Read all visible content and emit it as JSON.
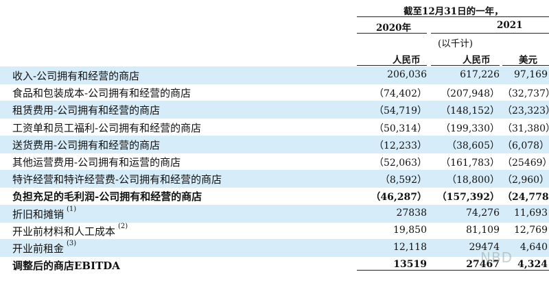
{
  "header": {
    "period": "截至12月31日的一年，",
    "year_2020": "2020年",
    "year_2021": "2021",
    "thousands_note": "(以千计)",
    "currency_rmb_2020": "人民币",
    "currency_rmb_2021": "人民币",
    "currency_usd": "美元"
  },
  "rows": [
    {
      "label": "收入-公司拥有和经营的商店",
      "note": "",
      "v2020": "206,036",
      "v2021_rmb": "617,226",
      "v2021_usd": "97,169",
      "bold": false,
      "shaded": true
    },
    {
      "label": "食品和包装成本-公司拥有和经营的商店",
      "note": "",
      "v2020": "（74,402）",
      "v2021_rmb": "（207,948）",
      "v2021_usd": "（32,737）",
      "bold": false,
      "shaded": false
    },
    {
      "label": "租赁费用-公司拥有和经营的商店",
      "note": "",
      "v2020": "（54,719）",
      "v2021_rmb": "（148,152）",
      "v2021_usd": "（23,323）",
      "bold": false,
      "shaded": true
    },
    {
      "label": "工资单和员工福利-公司拥有和经营的商店",
      "note": "",
      "v2020": "（50,314）",
      "v2021_rmb": "（199,330）",
      "v2021_usd": "（31,380）",
      "bold": false,
      "shaded": false
    },
    {
      "label": "送货费用-公司拥有和经营的商店",
      "note": "",
      "v2020": "（12,233）",
      "v2021_rmb": "（38,605）",
      "v2021_usd": "（6,078）",
      "bold": false,
      "shaded": true
    },
    {
      "label": "其他运营费用-公司拥有和运营的商店",
      "note": "",
      "v2020": "（52,063）",
      "v2021_rmb": "（161,783）",
      "v2021_usd": "（25469）",
      "bold": false,
      "shaded": false
    },
    {
      "label": "特许经营和特许经营费-公司拥有和经营的商店",
      "note": "",
      "v2020": "（8,592）",
      "v2021_rmb": "（18,800）",
      "v2021_usd": "（2,960）",
      "bold": false,
      "shaded": true
    },
    {
      "label": "负担充足的毛利润-公司拥有和经营的商店",
      "note": "",
      "v2020": "（46,287）",
      "v2021_rmb": "（157,392）",
      "v2021_usd": "（24,778）",
      "bold": true,
      "shaded": false
    },
    {
      "label": "折旧和摊销",
      "note": "(1)",
      "v2020": "27838",
      "v2021_rmb": "74,276",
      "v2021_usd": "11,693",
      "bold": false,
      "shaded": true
    },
    {
      "label": "开业前材料和人工成本",
      "note": "(2)",
      "v2020": "19,850",
      "v2021_rmb": "81,109",
      "v2021_usd": "12,769",
      "bold": false,
      "shaded": false
    },
    {
      "label": "开业前租金",
      "note": "(3)",
      "v2020": "12,118",
      "v2021_rmb": "29474",
      "v2021_usd": "4,640",
      "bold": false,
      "shaded": true
    },
    {
      "label": "调整后的商店EBITDA",
      "note": "",
      "v2020": "13519",
      "v2021_rmb": "27467",
      "v2021_usd": "4,324",
      "bold": true,
      "shaded": false
    }
  ],
  "watermark": "NBD"
}
